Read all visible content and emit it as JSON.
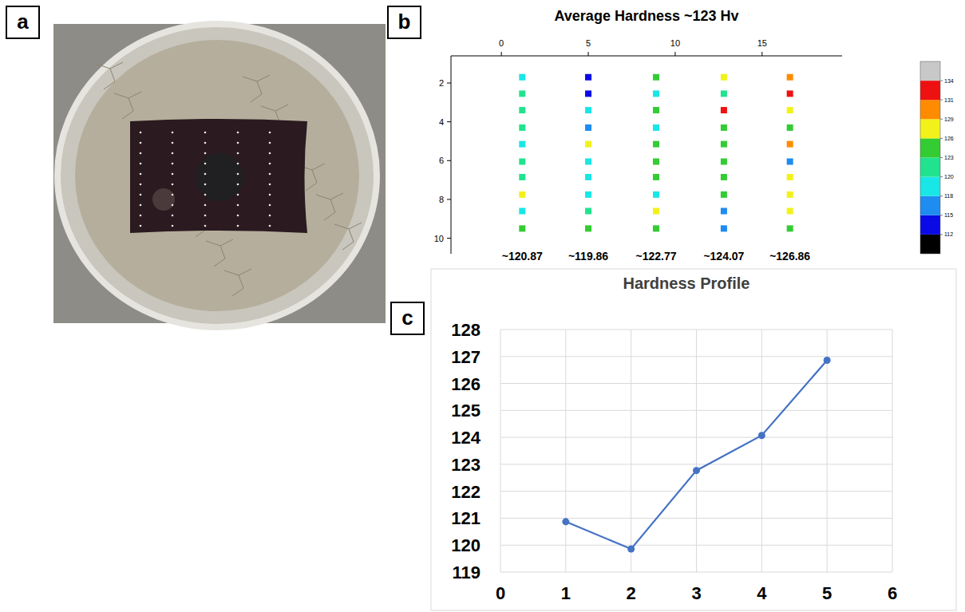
{
  "panel_labels": [
    "a",
    "b",
    "c"
  ],
  "chart_data": [
    {
      "type": "scatter",
      "title": "Average Hardness ~123 Hv",
      "xlim": [
        -2.9,
        19.6
      ],
      "xticks": [
        0,
        5,
        10,
        15
      ],
      "ylim": [
        10.8,
        0.6
      ],
      "yticks": [
        2,
        4,
        6,
        8,
        10
      ],
      "marker": "square",
      "series": [
        {
          "x": [
            1.2,
            1.2,
            1.2,
            1.2,
            1.2,
            1.2,
            1.2,
            1.2,
            1.2,
            1.2
          ],
          "values": [
            1.7,
            2.55,
            3.4,
            4.3,
            5.15,
            6.05,
            6.85,
            7.75,
            8.6,
            9.5
          ],
          "hardness": [
            119,
            121.5,
            121.5,
            121.5,
            119,
            121.5,
            121.5,
            127.5,
            119,
            124.5
          ]
        },
        {
          "x": [
            5.0,
            5.0,
            5.0,
            5.0,
            5.0,
            5.0,
            5.0,
            5.0,
            5.0,
            5.0
          ],
          "values": [
            1.7,
            2.55,
            3.4,
            4.3,
            5.15,
            6.05,
            6.85,
            7.75,
            8.6,
            9.5
          ],
          "hardness": [
            113.5,
            113.5,
            119,
            116.5,
            127.5,
            119,
            119,
            119,
            121.5,
            124.5
          ]
        },
        {
          "x": [
            8.9,
            8.9,
            8.9,
            8.9,
            8.9,
            8.9,
            8.9,
            8.9,
            8.9,
            8.9
          ],
          "values": [
            1.7,
            2.55,
            3.4,
            4.3,
            5.15,
            6.05,
            6.85,
            7.75,
            8.6,
            9.5
          ],
          "hardness": [
            124.5,
            119,
            124.5,
            119,
            124.5,
            124.5,
            124.5,
            119,
            127.5,
            124.5
          ]
        },
        {
          "x": [
            12.8,
            12.8,
            12.8,
            12.8,
            12.8,
            12.8,
            12.8,
            12.8,
            12.8,
            12.8
          ],
          "values": [
            1.7,
            2.55,
            3.4,
            4.3,
            5.15,
            6.05,
            6.85,
            7.75,
            8.6,
            9.5
          ],
          "hardness": [
            127.5,
            121.5,
            132.5,
            124.5,
            124.5,
            124.5,
            124.5,
            124.5,
            116.5,
            116.5
          ]
        },
        {
          "x": [
            16.6,
            16.6,
            16.6,
            16.6,
            16.6,
            16.6,
            16.6,
            16.6,
            16.6,
            16.6
          ],
          "values": [
            1.7,
            2.55,
            3.4,
            4.3,
            5.15,
            6.05,
            6.85,
            7.75,
            8.6,
            9.5
          ],
          "hardness": [
            130,
            132.5,
            127.5,
            124.5,
            130,
            116.5,
            127.5,
            127.5,
            127.5,
            124.5
          ]
        }
      ],
      "annotations": [
        "~120.87",
        "~119.86",
        "~122.77",
        "~124.07",
        "~126.86"
      ],
      "colorbar": {
        "ticks": [
          112,
          115,
          118,
          120,
          123,
          126,
          129,
          131,
          134
        ],
        "colors": [
          "#000000",
          "#0a0ae6",
          "#1e8cf0",
          "#19e6e6",
          "#21e38f",
          "#33cc33",
          "#f2f21a",
          "#ff8c00",
          "#ee1111",
          "#c8c8c8"
        ]
      }
    },
    {
      "type": "line",
      "title": "Hardness Profile",
      "x": [
        1,
        2,
        3,
        4,
        5
      ],
      "values": [
        120.87,
        119.86,
        122.77,
        124.07,
        126.86
      ],
      "color": "#4472c4",
      "marker": "circle",
      "grid": true,
      "xlim": [
        0,
        6
      ],
      "xticks": [
        0,
        1,
        2,
        3,
        4,
        5,
        6
      ],
      "ylim": [
        119,
        128
      ],
      "yticks": [
        119,
        120,
        121,
        122,
        123,
        124,
        125,
        126,
        127,
        128
      ]
    }
  ]
}
